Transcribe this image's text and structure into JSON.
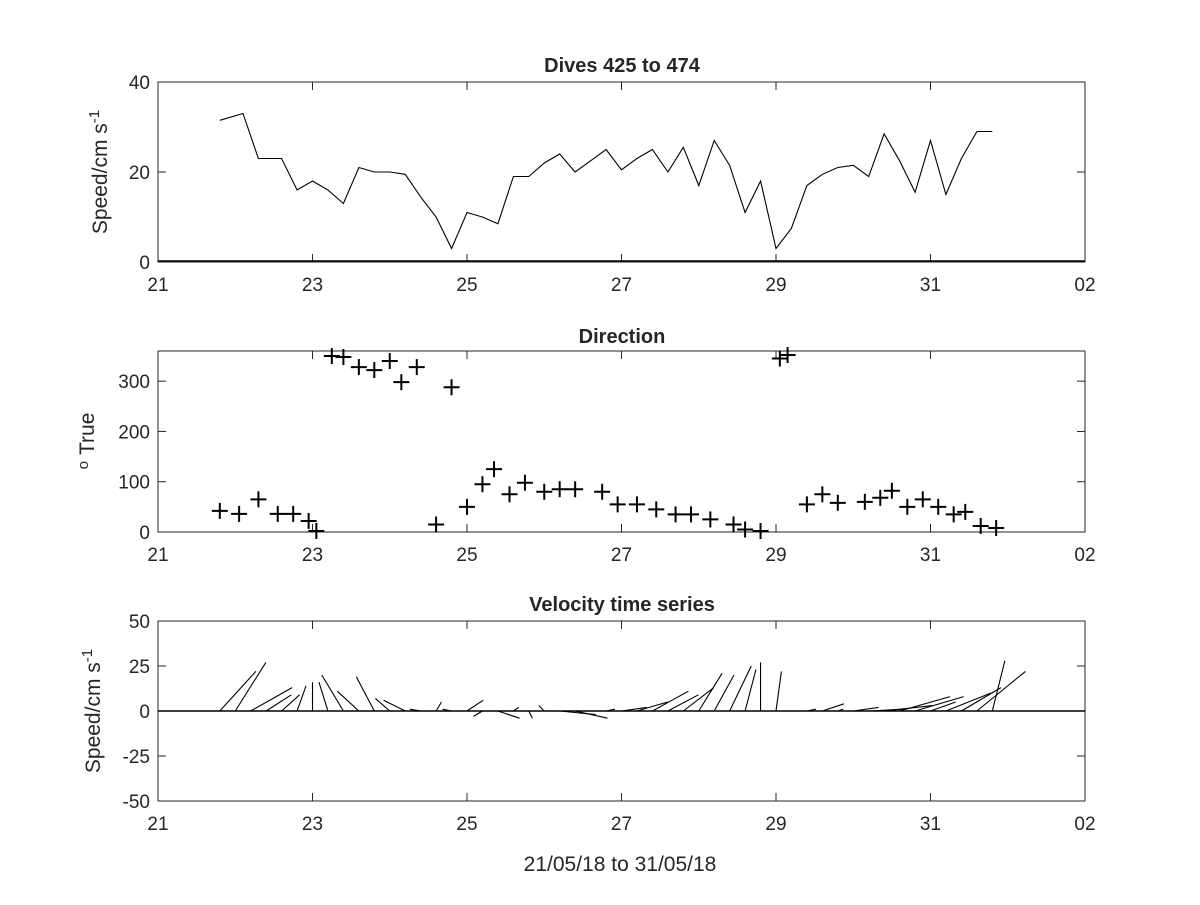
{
  "x_axis": {
    "label": "21/05/18 to 31/05/18",
    "ticks": [
      {
        "day": 21,
        "label": "21"
      },
      {
        "day": 23,
        "label": "23"
      },
      {
        "day": 25,
        "label": "25"
      },
      {
        "day": 27,
        "label": "27"
      },
      {
        "day": 29,
        "label": "29"
      },
      {
        "day": 31,
        "label": "31"
      },
      {
        "day": 33,
        "label": "02"
      }
    ],
    "range_days": [
      21,
      33
    ]
  },
  "chart_data": [
    {
      "type": "line",
      "title": "Dives 425 to 474",
      "ylabel": "Speed/cm s",
      "ylabel_sup": "-1",
      "ylim": [
        0,
        40
      ],
      "yticks": [
        0,
        20,
        40
      ],
      "x": [
        21.8,
        22.1,
        22.3,
        22.6,
        22.8,
        23.0,
        23.2,
        23.4,
        23.6,
        23.8,
        24.0,
        24.2,
        24.4,
        24.6,
        24.8,
        25.0,
        25.2,
        25.4,
        25.6,
        25.8,
        26.0,
        26.2,
        26.4,
        26.6,
        26.8,
        27.0,
        27.2,
        27.4,
        27.6,
        27.8,
        28.0,
        28.2,
        28.4,
        28.6,
        28.8,
        29.0,
        29.2,
        29.4,
        29.6,
        29.8,
        30.0,
        30.2,
        30.4,
        30.6,
        30.8,
        31.0,
        31.2,
        31.4,
        31.6,
        31.8
      ],
      "values": [
        31.5,
        33,
        23,
        23,
        16,
        18,
        16,
        13,
        21,
        20,
        20,
        19.5,
        14.5,
        10,
        3,
        11,
        10,
        8.5,
        19,
        19,
        22,
        24,
        20,
        22.5,
        25,
        20.5,
        23,
        25,
        20,
        25.5,
        17,
        27,
        21.5,
        11,
        18,
        3,
        7.5,
        17,
        19.5,
        21,
        21.5,
        19,
        28.5,
        22.5,
        15.5,
        27,
        15,
        23,
        29,
        29
      ]
    },
    {
      "type": "scatter",
      "title": "Direction",
      "ylabel": "True",
      "ylabel_prefix": "o",
      "ylim": [
        0,
        360
      ],
      "yticks": [
        0,
        100,
        200,
        300
      ],
      "x": [
        21.8,
        22.05,
        22.3,
        22.55,
        22.75,
        22.95,
        23.05,
        23.25,
        23.4,
        23.6,
        23.8,
        24.0,
        24.15,
        24.35,
        24.6,
        24.8,
        25.0,
        25.2,
        25.35,
        25.55,
        25.75,
        26.0,
        26.2,
        26.4,
        26.75,
        26.95,
        27.2,
        27.45,
        27.7,
        27.9,
        28.15,
        28.45,
        28.6,
        28.8,
        29.05,
        29.15,
        29.4,
        29.6,
        29.8,
        30.15,
        30.35,
        30.5,
        30.7,
        30.9,
        31.1,
        31.3,
        31.45,
        31.65,
        31.85
      ],
      "values": [
        42,
        36,
        65,
        36,
        36,
        22,
        2,
        350,
        348,
        328,
        322,
        340,
        298,
        328,
        15,
        288,
        50,
        95,
        125,
        75,
        98,
        80,
        85,
        85,
        80,
        55,
        55,
        45,
        35,
        35,
        25,
        15,
        5,
        2,
        345,
        352,
        55,
        75,
        58,
        60,
        68,
        82,
        50,
        65,
        50,
        35,
        40,
        12,
        8
      ]
    },
    {
      "type": "stick",
      "title": "Velocity time series",
      "ylabel": "Speed/cm s",
      "ylabel_sup": "-1",
      "ylim": [
        -50,
        50
      ],
      "yticks": [
        -50,
        -25,
        0,
        25,
        50
      ],
      "x": [
        21.8,
        22.0,
        22.2,
        22.4,
        22.6,
        22.8,
        23.0,
        23.2,
        23.4,
        23.6,
        23.8,
        24.0,
        24.2,
        24.4,
        24.6,
        24.8,
        25.0,
        25.2,
        25.4,
        25.6,
        25.8,
        26.0,
        26.2,
        26.4,
        26.6,
        26.8,
        27.0,
        27.2,
        27.4,
        27.6,
        27.8,
        28.0,
        28.2,
        28.4,
        28.6,
        28.8,
        29.0,
        29.2,
        29.4,
        29.6,
        29.8,
        30.0,
        30.2,
        30.4,
        30.6,
        30.8,
        31.0,
        31.2,
        31.4,
        31.6,
        31.8
      ],
      "u": [
        20,
        17,
        23,
        14,
        10,
        5,
        0,
        -5,
        -12,
        -12,
        -10,
        -8,
        -12,
        -6,
        3,
        -5,
        9,
        -5,
        12,
        3,
        2,
        -3,
        20,
        18,
        12,
        5,
        14,
        17,
        20,
        17,
        17,
        13,
        11,
        12,
        6,
        0,
        3,
        0,
        5,
        12,
        3,
        14,
        20,
        27,
        28,
        27,
        14,
        25,
        22,
        27,
        7
      ],
      "v": [
        22,
        27,
        13,
        9,
        9,
        14,
        16,
        16,
        20,
        11,
        19,
        7,
        6,
        1,
        5,
        1,
        6,
        -3,
        -4,
        2,
        -4,
        3,
        -2,
        -4,
        0,
        1,
        2,
        5,
        11,
        9,
        13,
        21,
        20,
        25,
        23,
        27,
        22,
        0,
        1,
        4,
        1,
        2,
        1,
        3,
        8,
        8,
        5,
        10,
        13,
        22,
        28
      ]
    }
  ]
}
